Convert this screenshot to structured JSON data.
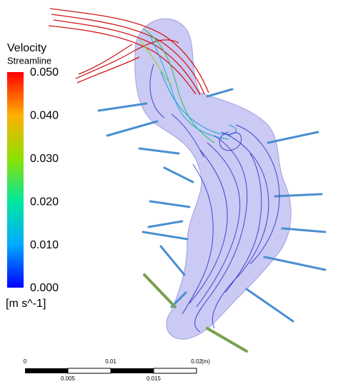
{
  "legend": {
    "title": "Velocity",
    "subtitle": "Streamline",
    "ticks": [
      "0.050",
      "0.040",
      "0.030",
      "0.020",
      "0.010",
      "0.000"
    ],
    "unit": "[m s^-1]"
  },
  "scale_bar": {
    "top_labels": [
      "0",
      "0.01",
      "0.02"
    ],
    "unit": "(m)",
    "bottom_labels": [
      "0.005",
      "0.015"
    ]
  }
}
